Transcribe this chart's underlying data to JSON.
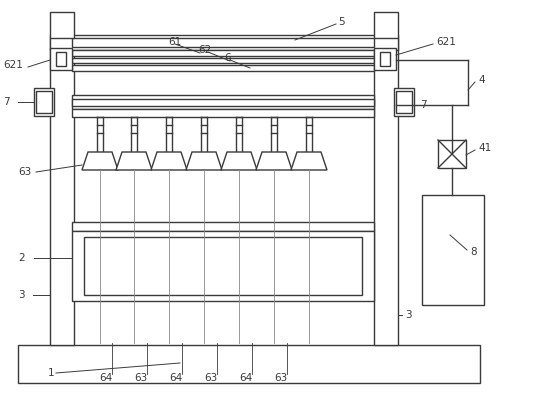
{
  "bg_color": "#ffffff",
  "line_color": "#3a3a3a",
  "line_width": 1.0,
  "label_fontsize": 7.5,
  "label_color": "#3a3a3a",
  "fig_width": 5.48,
  "fig_height": 3.98
}
